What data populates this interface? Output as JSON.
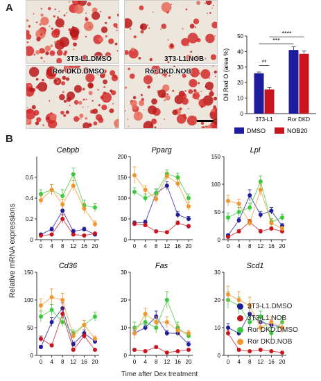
{
  "panel_a": {
    "letter": "A",
    "images": [
      {
        "label": "3T3-L1.DMSO",
        "density": 0.85
      },
      {
        "label": "3T3-L1.NOB",
        "density": 0.45
      },
      {
        "label": "Ror DKD.DMSO",
        "density": 1.0
      },
      {
        "label": "Ror DKD.NOB",
        "density": 0.95
      }
    ]
  },
  "panel_b": {
    "letter": "B"
  },
  "colors": {
    "blue": "#1c1c9c",
    "red": "#c8141e",
    "green": "#3cc83c",
    "orange": "#f0962d",
    "oil_red": "#d42a2a"
  },
  "chart_data": [
    {
      "type": "bar",
      "ylabel": "Oil Red O (area %)",
      "ylim": [
        0,
        50
      ],
      "yticks": [
        0,
        10,
        20,
        30,
        40,
        50
      ],
      "categories": [
        "3T3-L1",
        "Ror DKD"
      ],
      "series": [
        {
          "name": "DMSO",
          "color": "#1c1c9c",
          "values": [
            26,
            41
          ],
          "errors": [
            0.8,
            2
          ]
        },
        {
          "name": "NOB20",
          "color": "#c8141e",
          "values": [
            15.5,
            38.5
          ],
          "errors": [
            1.2,
            1.8
          ]
        }
      ],
      "significance": [
        "**",
        "***",
        "****"
      ]
    },
    {
      "type": "line",
      "title": "Cebpb",
      "ylim": [
        0,
        0.8
      ],
      "yticks": [
        0,
        0.2,
        0.4,
        0.6
      ],
      "x": [
        0,
        4,
        8,
        12,
        16,
        20
      ],
      "series": [
        {
          "name": "3T3-L1.DMSO",
          "values": [
            0.05,
            0.1,
            0.28,
            0.08,
            0.1,
            0.05
          ],
          "errors": [
            0.01,
            0.02,
            0.05,
            0.02,
            0.02,
            0.01
          ]
        },
        {
          "name": "3T3-L1.NOB",
          "values": [
            0.04,
            0.05,
            0.2,
            0.05,
            0.04,
            0.06
          ],
          "errors": [
            0.01,
            0.01,
            0.04,
            0.01,
            0.01,
            0.01
          ]
        },
        {
          "name": "Ror DKD.DMSO",
          "values": [
            0.44,
            0.48,
            0.42,
            0.63,
            0.33,
            0.31
          ],
          "errors": [
            0.04,
            0.05,
            0.06,
            0.06,
            0.05,
            0.04
          ]
        },
        {
          "name": "Ror DKD.NOB",
          "values": [
            0.38,
            0.48,
            0.34,
            0.52,
            0.3,
            0.15
          ],
          "errors": [
            0.04,
            0.05,
            0.05,
            0.05,
            0.05,
            0.03
          ]
        }
      ]
    },
    {
      "type": "line",
      "title": "Pparg",
      "ylim": [
        0,
        200
      ],
      "yticks": [
        0,
        50,
        100,
        150,
        200
      ],
      "x": [
        0,
        4,
        8,
        12,
        16,
        20
      ],
      "series": [
        {
          "name": "3T3-L1.DMSO",
          "values": [
            40,
            42,
            112,
            130,
            60,
            50
          ],
          "errors": [
            5,
            5,
            10,
            10,
            8,
            6
          ]
        },
        {
          "name": "3T3-L1.NOB",
          "values": [
            38,
            35,
            20,
            18,
            40,
            32
          ],
          "errors": [
            5,
            5,
            3,
            3,
            5,
            5
          ]
        },
        {
          "name": "Ror DKD.DMSO",
          "values": [
            115,
            100,
            112,
            158,
            150,
            100
          ],
          "errors": [
            10,
            10,
            10,
            10,
            10,
            10
          ]
        },
        {
          "name": "Ror DKD.NOB",
          "values": [
            155,
            120,
            98,
            153,
            135,
            80
          ],
          "errors": [
            20,
            10,
            10,
            10,
            10,
            10
          ]
        }
      ]
    },
    {
      "type": "line",
      "title": "Lpl",
      "ylim": [
        0,
        150
      ],
      "yticks": [
        0,
        50,
        100,
        150
      ],
      "x": [
        0,
        4,
        8,
        12,
        16,
        20
      ],
      "series": [
        {
          "name": "3T3-L1.DMSO",
          "values": [
            8,
            35,
            80,
            45,
            52,
            25
          ],
          "errors": [
            2,
            5,
            10,
            6,
            6,
            4
          ]
        },
        {
          "name": "3T3-L1.NOB",
          "values": [
            5,
            15,
            32,
            15,
            20,
            15
          ],
          "errors": [
            2,
            3,
            5,
            3,
            3,
            3
          ]
        },
        {
          "name": "Ror DKD.DMSO",
          "values": [
            40,
            50,
            58,
            105,
            32,
            40
          ],
          "errors": [
            8,
            8,
            8,
            10,
            6,
            6
          ]
        },
        {
          "name": "Ror DKD.NOB",
          "values": [
            70,
            65,
            30,
            90,
            30,
            20
          ],
          "errors": [
            10,
            8,
            6,
            10,
            6,
            4
          ]
        }
      ]
    },
    {
      "type": "line",
      "title": "Cd36",
      "ylim": [
        0,
        150
      ],
      "yticks": [
        0,
        50,
        100,
        150
      ],
      "x": [
        0,
        4,
        8,
        12,
        16,
        20
      ],
      "series": [
        {
          "name": "3T3-L1.DMSO",
          "values": [
            15,
            60,
            85,
            20,
            40,
            25
          ],
          "errors": [
            3,
            8,
            10,
            4,
            6,
            4
          ]
        },
        {
          "name": "3T3-L1.NOB",
          "values": [
            30,
            18,
            75,
            10,
            35,
            10
          ],
          "errors": [
            5,
            3,
            10,
            3,
            5,
            2
          ]
        },
        {
          "name": "Ror DKD.DMSO",
          "values": [
            70,
            82,
            60,
            40,
            55,
            70
          ],
          "errors": [
            10,
            10,
            8,
            6,
            8,
            8
          ]
        },
        {
          "name": "Ror DKD.NOB",
          "values": [
            90,
            105,
            100,
            35,
            55,
            30
          ],
          "errors": [
            12,
            15,
            12,
            6,
            8,
            5
          ]
        }
      ]
    },
    {
      "type": "line",
      "title": "Fas",
      "ylim": [
        0,
        30
      ],
      "yticks": [
        0,
        10,
        20,
        30
      ],
      "x": [
        0,
        4,
        8,
        12,
        16,
        20
      ],
      "series": [
        {
          "name": "3T3-L1.DMSO",
          "values": [
            8,
            10,
            14,
            8,
            8,
            4
          ],
          "errors": [
            1,
            1,
            2,
            1,
            1,
            1
          ]
        },
        {
          "name": "3T3-L1.NOB",
          "values": [
            2,
            1.5,
            3,
            1,
            1.5,
            2
          ],
          "errors": [
            0.5,
            0.5,
            0.5,
            0.3,
            0.3,
            0.5
          ]
        },
        {
          "name": "Ror DKD.DMSO",
          "values": [
            10,
            12,
            10,
            20,
            10,
            7
          ],
          "errors": [
            2,
            2,
            2,
            3,
            2,
            1
          ]
        },
        {
          "name": "Ror DKD.NOB",
          "values": [
            8,
            15,
            12,
            12,
            9,
            8
          ],
          "errors": [
            2,
            2,
            2,
            2,
            2,
            1
          ]
        }
      ]
    },
    {
      "type": "line",
      "title": "Scd1",
      "ylim": [
        0,
        30
      ],
      "yticks": [
        0,
        10,
        20,
        30
      ],
      "x": [
        0,
        4,
        8,
        12,
        16,
        20
      ],
      "series": [
        {
          "name": "3T3-L1.DMSO",
          "values": [
            10,
            8,
            15,
            12,
            11,
            10
          ],
          "errors": [
            1.5,
            1,
            2,
            2,
            1.5,
            1.5
          ]
        },
        {
          "name": "3T3-L1.NOB",
          "values": [
            8,
            2,
            1.5,
            2,
            1.5,
            1
          ],
          "errors": [
            1,
            0.5,
            0.3,
            0.5,
            0.3,
            0.3
          ]
        },
        {
          "name": "Ror DKD.DMSO",
          "values": [
            20,
            18,
            12,
            14,
            8,
            12
          ],
          "errors": [
            3,
            3,
            2,
            2,
            2,
            2
          ]
        },
        {
          "name": "Ror DKD.NOB",
          "values": [
            22,
            20,
            18,
            10,
            12,
            10
          ],
          "errors": [
            3,
            3,
            3,
            2,
            2,
            2
          ]
        }
      ]
    }
  ],
  "line_panels": {
    "ylabel": "Relative mRNA expressions",
    "xlabel": "Time after Dex treatment"
  },
  "legend": [
    {
      "label": "3T3-L1.DMSO",
      "color": "#1c1c9c"
    },
    {
      "label": "3T3-L1.NOB",
      "color": "#c8141e"
    },
    {
      "label": "Ror DKD.DMSO",
      "color": "#3cc83c"
    },
    {
      "label": "Ror DKD.NOB",
      "color": "#f0962d"
    }
  ]
}
